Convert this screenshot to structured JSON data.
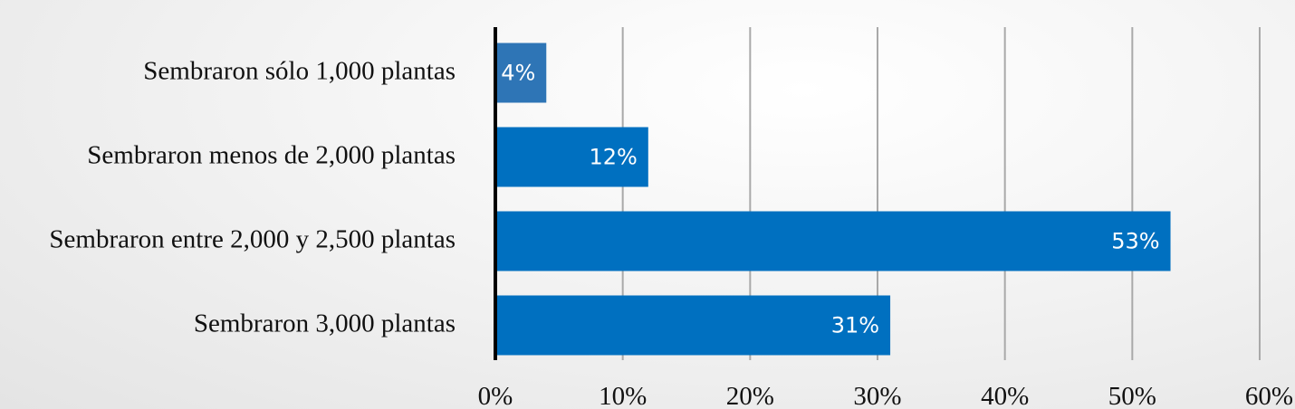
{
  "chart_data": {
    "type": "bar",
    "orientation": "horizontal",
    "categories": [
      "Sembraron sólo 1,000 plantas",
      "Sembraron menos de 2,000 plantas",
      "Sembraron entre 2,000 y 2,500 plantas",
      "Sembraron 3,000  plantas"
    ],
    "values": [
      4,
      12,
      53,
      31
    ],
    "data_labels": [
      "4%",
      "12%",
      "53%",
      "31%"
    ],
    "xlim": [
      0,
      60
    ],
    "xticks": [
      "0%",
      "10%",
      "20%",
      "30%",
      "40%",
      "50%",
      "60%"
    ],
    "grid": true,
    "legend": "none",
    "title": "",
    "xlabel": "",
    "ylabel": "",
    "colors": {
      "bar": "#0070C0",
      "bar_first": "#2E75B6"
    }
  }
}
